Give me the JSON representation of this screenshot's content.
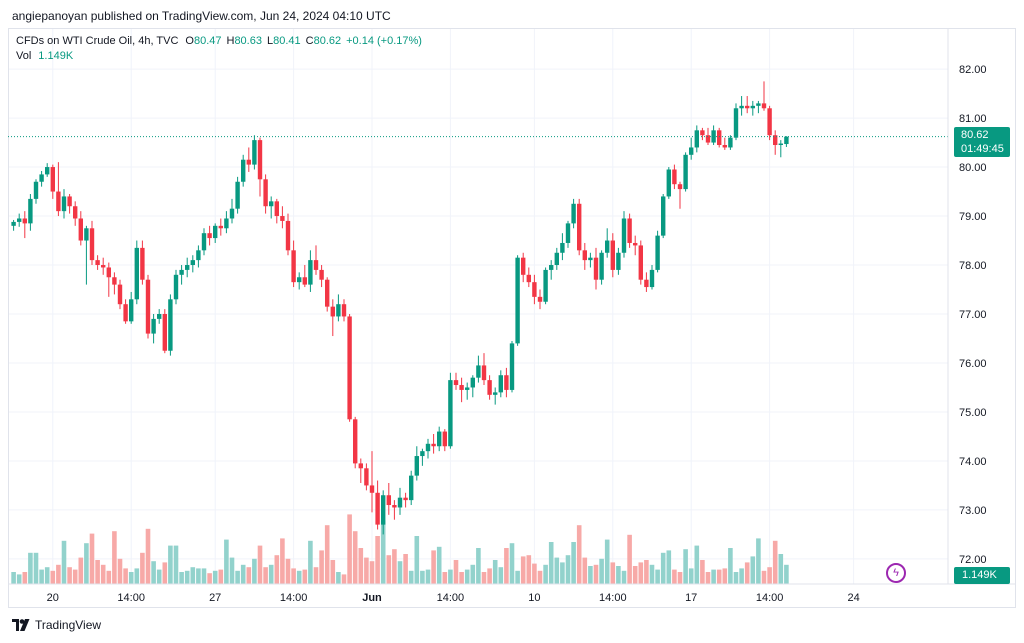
{
  "header": {
    "publisher": "angiepanoyan published on TradingView.com, Jun 24, 2024 04:10 UTC"
  },
  "legend": {
    "symbol": "CFDs on WTI Crude Oil, 4h, TVC",
    "o_label": "O",
    "o_value": "80.47",
    "h_label": "H",
    "h_value": "80.63",
    "l_label": "L",
    "l_value": "80.41",
    "c_label": "C",
    "c_value": "80.62",
    "change": "+0.14 (+0.17%)",
    "vol_label": "Vol",
    "vol_value": "1.149K"
  },
  "badges": {
    "price": "80.62",
    "countdown": "01:49:45",
    "volume": "1.149K"
  },
  "footer": {
    "brand": "TradingView"
  },
  "colors": {
    "up": "#089981",
    "down": "#f23645",
    "up_vol": "#92d2cc",
    "down_vol": "#f7a9a7",
    "grid": "#f0f3fa"
  },
  "icons": {
    "bolt": "lightning-bolt-icon",
    "logo": "tradingview-logo-icon"
  },
  "chart_data": {
    "type": "candlestick",
    "title": "",
    "xlabel": "",
    "ylabel": "",
    "ylim": [
      71.6,
      82.4
    ],
    "y_ticks": [
      "82.00",
      "81.00",
      "80.00",
      "79.00",
      "78.00",
      "77.00",
      "76.00",
      "75.00",
      "74.00",
      "73.00",
      "72.00"
    ],
    "x_ticks": [
      {
        "label": "20",
        "bar": 7,
        "bold": false
      },
      {
        "label": "14:00",
        "bar": 21,
        "bold": false
      },
      {
        "label": "27",
        "bar": 36,
        "bold": false
      },
      {
        "label": "14:00",
        "bar": 50,
        "bold": false
      },
      {
        "label": "Jun",
        "bar": 64,
        "bold": true
      },
      {
        "label": "14:00",
        "bar": 78,
        "bold": false
      },
      {
        "label": "10",
        "bar": 93,
        "bold": false
      },
      {
        "label": "14:00",
        "bar": 107,
        "bold": false
      },
      {
        "label": "17",
        "bar": 121,
        "bold": false
      },
      {
        "label": "14:00",
        "bar": 135,
        "bold": false
      },
      {
        "label": "24",
        "bar": 150,
        "bold": false
      }
    ],
    "last_price": 80.62,
    "candles": [
      [
        78.8,
        78.92,
        78.7,
        78.88
      ],
      [
        78.88,
        79.05,
        78.78,
        78.95
      ],
      [
        78.95,
        79.1,
        78.55,
        78.85
      ],
      [
        78.85,
        79.45,
        78.7,
        79.35
      ],
      [
        79.35,
        79.75,
        79.25,
        79.7
      ],
      [
        79.7,
        79.92,
        79.6,
        79.85
      ],
      [
        79.85,
        80.08,
        79.8,
        80.0
      ],
      [
        80.0,
        80.05,
        79.35,
        79.5
      ],
      [
        79.5,
        80.1,
        79.0,
        79.1
      ],
      [
        79.1,
        79.55,
        78.95,
        79.4
      ],
      [
        79.4,
        79.45,
        79.05,
        79.2
      ],
      [
        79.2,
        79.3,
        78.8,
        78.95
      ],
      [
        78.95,
        79.1,
        78.4,
        78.5
      ],
      [
        78.5,
        78.8,
        77.6,
        78.75
      ],
      [
        78.75,
        78.9,
        78.0,
        78.1
      ],
      [
        78.1,
        78.2,
        77.9,
        78.0
      ],
      [
        78.0,
        78.15,
        77.8,
        77.95
      ],
      [
        77.95,
        78.05,
        77.35,
        77.75
      ],
      [
        77.75,
        77.85,
        77.4,
        77.6
      ],
      [
        77.6,
        77.7,
        77.1,
        77.2
      ],
      [
        77.2,
        77.3,
        76.8,
        76.85
      ],
      [
        76.85,
        77.45,
        76.8,
        77.3
      ],
      [
        77.3,
        78.5,
        77.2,
        78.35
      ],
      [
        78.35,
        78.5,
        77.6,
        77.7
      ],
      [
        77.7,
        77.8,
        76.5,
        76.6
      ],
      [
        76.6,
        77.0,
        76.4,
        76.9
      ],
      [
        76.9,
        77.1,
        76.8,
        77.0
      ],
      [
        77.0,
        77.1,
        76.2,
        76.25
      ],
      [
        76.25,
        77.4,
        76.15,
        77.3
      ],
      [
        77.3,
        77.9,
        77.2,
        77.8
      ],
      [
        77.8,
        78.0,
        77.6,
        77.9
      ],
      [
        77.9,
        78.15,
        77.75,
        78.0
      ],
      [
        78.0,
        78.2,
        77.85,
        78.1
      ],
      [
        78.1,
        78.4,
        77.95,
        78.3
      ],
      [
        78.3,
        78.75,
        78.2,
        78.65
      ],
      [
        78.65,
        78.8,
        78.4,
        78.55
      ],
      [
        78.55,
        78.85,
        78.45,
        78.8
      ],
      [
        78.8,
        78.95,
        78.6,
        78.75
      ],
      [
        78.75,
        79.1,
        78.65,
        78.95
      ],
      [
        78.95,
        79.35,
        78.85,
        79.15
      ],
      [
        79.15,
        79.8,
        79.05,
        79.7
      ],
      [
        79.7,
        80.25,
        79.6,
        80.15
      ],
      [
        80.15,
        80.4,
        79.9,
        80.05
      ],
      [
        80.05,
        80.65,
        79.95,
        80.55
      ],
      [
        80.55,
        80.6,
        79.4,
        79.75
      ],
      [
        79.75,
        79.85,
        79.05,
        79.2
      ],
      [
        79.2,
        79.4,
        78.95,
        79.3
      ],
      [
        79.3,
        79.35,
        78.85,
        79.0
      ],
      [
        79.0,
        79.2,
        78.75,
        78.9
      ],
      [
        78.9,
        79.05,
        78.2,
        78.3
      ],
      [
        78.3,
        78.5,
        77.55,
        77.65
      ],
      [
        77.65,
        77.85,
        77.5,
        77.75
      ],
      [
        77.75,
        78.0,
        77.55,
        77.6
      ],
      [
        77.6,
        78.3,
        77.45,
        78.1
      ],
      [
        78.1,
        78.4,
        77.8,
        77.9
      ],
      [
        77.9,
        78.0,
        77.55,
        77.7
      ],
      [
        77.7,
        77.75,
        77.05,
        77.15
      ],
      [
        77.15,
        77.3,
        76.55,
        76.95
      ],
      [
        76.95,
        77.4,
        76.85,
        77.2
      ],
      [
        77.2,
        77.3,
        76.85,
        76.95
      ],
      [
        76.95,
        77.0,
        74.8,
        74.85
      ],
      [
        74.85,
        74.9,
        73.85,
        73.95
      ],
      [
        73.95,
        74.05,
        73.55,
        73.85
      ],
      [
        73.85,
        73.95,
        73.4,
        73.5
      ],
      [
        73.5,
        74.2,
        72.95,
        73.35
      ],
      [
        73.35,
        73.6,
        72.6,
        72.7
      ],
      [
        72.7,
        73.4,
        72.5,
        73.3
      ],
      [
        73.3,
        73.55,
        72.9,
        73.1
      ],
      [
        73.1,
        73.2,
        72.8,
        73.05
      ],
      [
        73.05,
        73.45,
        72.9,
        73.25
      ],
      [
        73.25,
        73.35,
        73.05,
        73.2
      ],
      [
        73.2,
        73.8,
        73.1,
        73.7
      ],
      [
        73.7,
        74.3,
        73.6,
        74.1
      ],
      [
        74.1,
        74.25,
        73.9,
        74.2
      ],
      [
        74.2,
        74.45,
        74.05,
        74.35
      ],
      [
        74.35,
        74.55,
        74.15,
        74.3
      ],
      [
        74.3,
        74.7,
        74.2,
        74.6
      ],
      [
        74.6,
        74.65,
        74.2,
        74.3
      ],
      [
        74.3,
        75.8,
        74.25,
        75.65
      ],
      [
        75.65,
        75.8,
        75.45,
        75.55
      ],
      [
        75.55,
        75.7,
        75.2,
        75.45
      ],
      [
        75.45,
        75.6,
        75.25,
        75.5
      ],
      [
        75.5,
        75.75,
        75.3,
        75.7
      ],
      [
        75.7,
        76.15,
        75.6,
        75.95
      ],
      [
        75.95,
        76.2,
        75.55,
        75.65
      ],
      [
        75.65,
        75.75,
        75.25,
        75.35
      ],
      [
        75.35,
        75.5,
        75.15,
        75.4
      ],
      [
        75.4,
        75.85,
        75.3,
        75.75
      ],
      [
        75.75,
        75.9,
        75.3,
        75.45
      ],
      [
        75.45,
        76.45,
        75.4,
        76.4
      ],
      [
        76.4,
        78.2,
        76.35,
        78.15
      ],
      [
        78.15,
        78.25,
        77.65,
        77.8
      ],
      [
        77.8,
        77.95,
        77.55,
        77.65
      ],
      [
        77.65,
        77.8,
        77.2,
        77.35
      ],
      [
        77.35,
        77.5,
        77.1,
        77.25
      ],
      [
        77.25,
        77.95,
        77.2,
        77.9
      ],
      [
        77.9,
        78.1,
        77.7,
        78.0
      ],
      [
        78.0,
        78.35,
        77.9,
        78.25
      ],
      [
        78.25,
        78.65,
        78.1,
        78.45
      ],
      [
        78.45,
        78.9,
        78.35,
        78.85
      ],
      [
        78.85,
        79.35,
        78.75,
        79.25
      ],
      [
        79.25,
        79.35,
        78.2,
        78.3
      ],
      [
        78.3,
        78.45,
        77.9,
        78.1
      ],
      [
        78.1,
        78.25,
        77.95,
        78.15
      ],
      [
        78.15,
        78.35,
        77.5,
        77.7
      ],
      [
        77.7,
        78.3,
        77.6,
        78.25
      ],
      [
        78.25,
        78.75,
        78.15,
        78.5
      ],
      [
        78.5,
        78.65,
        77.75,
        77.9
      ],
      [
        77.9,
        78.35,
        77.8,
        78.25
      ],
      [
        78.25,
        79.1,
        78.15,
        78.95
      ],
      [
        78.95,
        79.05,
        78.35,
        78.45
      ],
      [
        78.45,
        78.6,
        78.2,
        78.4
      ],
      [
        78.4,
        78.5,
        77.6,
        77.7
      ],
      [
        77.7,
        77.85,
        77.45,
        77.55
      ],
      [
        77.55,
        78.0,
        77.5,
        77.9
      ],
      [
        77.9,
        78.7,
        77.85,
        78.6
      ],
      [
        78.6,
        79.45,
        78.55,
        79.4
      ],
      [
        79.4,
        80.0,
        79.35,
        79.95
      ],
      [
        79.95,
        80.05,
        79.55,
        79.65
      ],
      [
        79.65,
        79.7,
        79.15,
        79.55
      ],
      [
        79.55,
        80.3,
        79.5,
        80.25
      ],
      [
        80.25,
        80.6,
        80.15,
        80.4
      ],
      [
        80.4,
        80.85,
        80.3,
        80.75
      ],
      [
        80.75,
        80.8,
        80.55,
        80.65
      ],
      [
        80.65,
        80.8,
        80.45,
        80.5
      ],
      [
        80.5,
        80.85,
        80.45,
        80.75
      ],
      [
        80.75,
        80.8,
        80.4,
        80.45
      ],
      [
        80.45,
        80.6,
        80.35,
        80.4
      ],
      [
        80.4,
        80.65,
        80.35,
        80.6
      ],
      [
        80.6,
        81.3,
        80.55,
        81.2
      ],
      [
        81.2,
        81.45,
        81.05,
        81.25
      ],
      [
        81.25,
        81.45,
        81.1,
        81.2
      ],
      [
        81.2,
        81.35,
        81.05,
        81.25
      ],
      [
        81.25,
        81.35,
        81.1,
        81.3
      ],
      [
        81.3,
        81.75,
        81.15,
        81.2
      ],
      [
        81.2,
        81.25,
        80.55,
        80.65
      ],
      [
        80.65,
        80.75,
        80.25,
        80.45
      ],
      [
        80.45,
        80.55,
        80.2,
        80.48
      ],
      [
        80.47,
        80.63,
        80.41,
        80.62
      ]
    ],
    "volume_max": 5,
    "volumes": [
      1.0,
      0.8,
      1.0,
      2.6,
      2.6,
      1.2,
      1.4,
      1.1,
      1.6,
      3.6,
      1.4,
      1.2,
      2.2,
      3.4,
      4.2,
      2.0,
      1.6,
      1.1,
      4.4,
      2.1,
      1.3,
      1.0,
      1.3,
      2.6,
      4.6,
      1.9,
      1.2,
      1.8,
      3.2,
      3.2,
      1.0,
      1.1,
      1.4,
      1.3,
      1.3,
      0.9,
      1.1,
      1.2,
      3.7,
      2.2,
      1.1,
      1.6,
      1.4,
      2.1,
      3.2,
      1.4,
      1.6,
      2.4,
      3.8,
      2.1,
      1.3,
      1.1,
      1.2,
      3.6,
      1.4,
      2.8,
      4.9,
      2.0,
      1.0,
      0.8,
      5.8,
      4.4,
      3.0,
      2.2,
      1.9,
      4.0,
      5.3,
      2.4,
      2.9,
      1.9,
      2.5,
      1.1,
      4.0,
      1.1,
      1.2,
      2.8,
      3.1,
      1.0,
      1.2,
      2.0,
      1.0,
      1.2,
      1.6,
      3.0,
      1.0,
      1.3,
      2.0,
      1.4,
      3.0,
      3.4,
      1.1,
      2.3,
      2.4,
      1.7,
      1.1,
      1.6,
      3.5,
      2.2,
      1.8,
      2.4,
      3.5,
      4.9,
      2.2,
      1.5,
      1.6,
      2.1,
      3.7,
      1.8,
      1.5,
      1.1,
      4.1,
      1.5,
      1.8,
      2.0,
      1.6,
      1.2,
      2.6,
      2.8,
      1.2,
      1.0,
      2.9,
      1.3,
      3.2,
      2.0,
      1.0,
      1.2,
      1.2,
      1.3,
      3.0,
      1.0,
      1.3,
      1.8,
      2.3,
      3.8,
      1.1,
      1.4,
      3.6,
      2.5,
      1.6,
      1.1,
      4.2,
      1.2
    ]
  }
}
